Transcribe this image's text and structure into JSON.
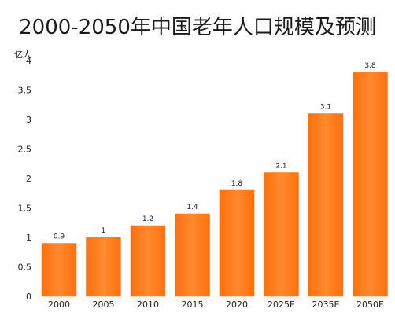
{
  "chart_data": {
    "type": "bar",
    "title": "2000-2050年中国老年人口规模及预测",
    "ylabel": "亿人",
    "xlabel": "",
    "categories": [
      "2000",
      "2005",
      "2010",
      "2015",
      "2020",
      "2025E",
      "2035E",
      "2050E"
    ],
    "values": [
      0.9,
      1,
      1.2,
      1.4,
      1.8,
      2.1,
      3.1,
      3.8
    ],
    "value_labels": [
      "0.9",
      "1",
      "1.2",
      "1.4",
      "1.8",
      "2.1",
      "3.1",
      "3.8"
    ],
    "ylim": [
      0,
      4
    ],
    "yticks": [
      0,
      0.5,
      1,
      1.5,
      2,
      2.5,
      3,
      3.5,
      4
    ],
    "ytick_labels": [
      "0",
      "0.5",
      "1",
      "1.5",
      "2",
      "2.5",
      "3",
      "3.5",
      "4"
    ],
    "grid": false,
    "legend": "none",
    "bar_color": "#ff7a1a"
  }
}
